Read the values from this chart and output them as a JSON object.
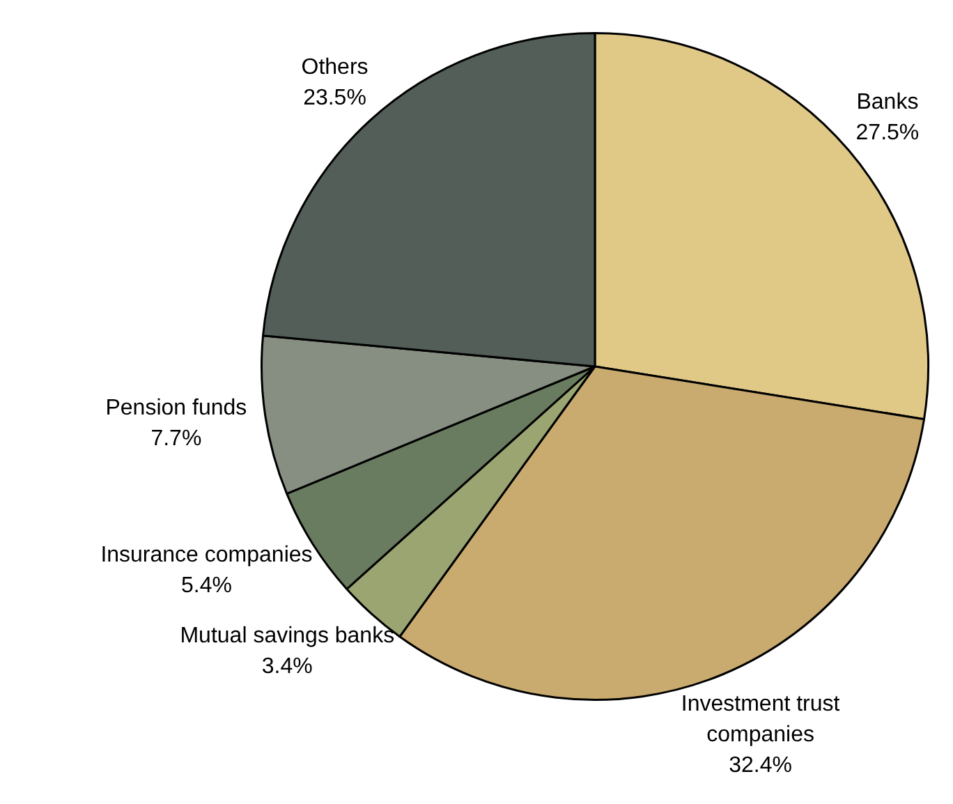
{
  "chart_data": {
    "type": "pie",
    "categories": [
      "Banks",
      "Investment trust companies",
      "Mutual savings banks",
      "Insurance companies",
      "Pension funds",
      "Others"
    ],
    "values": [
      27.5,
      32.4,
      3.4,
      5.4,
      7.7,
      23.5
    ],
    "colors": [
      "#e0c987",
      "#c9ab6f",
      "#9aa572",
      "#6a7c5f",
      "#878f82",
      "#525e57"
    ],
    "value_labels": [
      "27.5%",
      "32.4%",
      "3.4%",
      "5.4%",
      "7.7%",
      "23.5%"
    ],
    "legend": false
  }
}
